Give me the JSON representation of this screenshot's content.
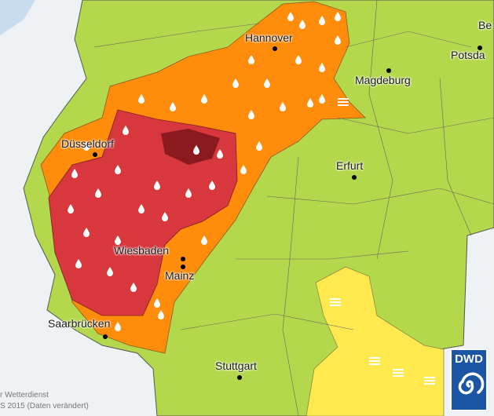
{
  "map": {
    "colors": {
      "no_warning": "#b4d84c",
      "orange": "#ff8c0a",
      "red": "#d7373d",
      "dark_red": "#8a1a1f",
      "yellow": "#ffe94f",
      "outside": "#eef2f5",
      "sea": "#c7dcef"
    },
    "cities": [
      {
        "name": "Hannover"
      },
      {
        "name": "Magdeburg"
      },
      {
        "name": "Düsseldorf"
      },
      {
        "name": "Erfurt"
      },
      {
        "name": "Wiesbaden"
      },
      {
        "name": "Mainz"
      },
      {
        "name": "Saarbrücken"
      },
      {
        "name": "Stuttgart"
      },
      {
        "name": "Potsda"
      },
      {
        "name": "Be"
      }
    ],
    "icons": [
      "raindrop-icon",
      "frost-stripes-icon"
    ]
  },
  "credit": {
    "line1": "r Wetterdienst",
    "line2": "S 2015 (Daten verändert)"
  },
  "logo": {
    "text": "DWD"
  }
}
